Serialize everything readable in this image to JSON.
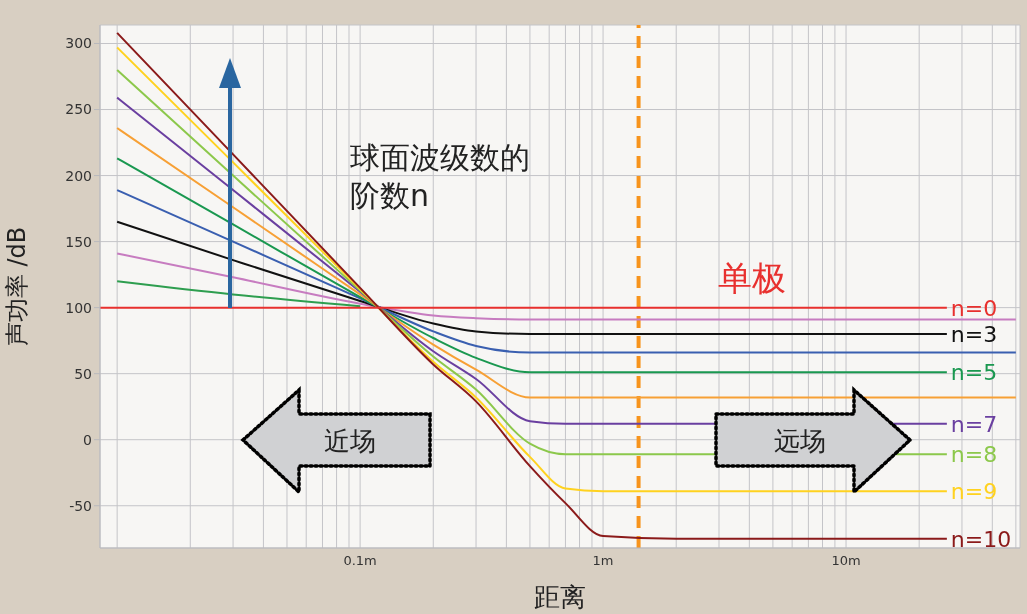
{
  "chart_data": {
    "type": "line",
    "xlabel": "距离",
    "ylabel": "声功率 /dB",
    "log": "x",
    "grid": true,
    "marker": "none",
    "line_style": "solid",
    "xlim": [
      0.0085,
      52
    ],
    "ylim": [
      -82,
      314
    ],
    "xticks": [
      {
        "value": 0.01,
        "label": null
      },
      {
        "value": 0.02,
        "label": null
      },
      {
        "value": 0.03,
        "label": null
      },
      {
        "value": 0.04,
        "label": null
      },
      {
        "value": 0.05,
        "label": null
      },
      {
        "value": 0.06,
        "label": null
      },
      {
        "value": 0.07,
        "label": null
      },
      {
        "value": 0.08,
        "label": null
      },
      {
        "value": 0.09,
        "label": null
      },
      {
        "value": 0.1,
        "label": "0.1m"
      },
      {
        "value": 0.2,
        "label": null
      },
      {
        "value": 0.3,
        "label": null
      },
      {
        "value": 0.4,
        "label": null
      },
      {
        "value": 0.5,
        "label": null
      },
      {
        "value": 0.6,
        "label": null
      },
      {
        "value": 0.7,
        "label": null
      },
      {
        "value": 0.8,
        "label": null
      },
      {
        "value": 0.9,
        "label": null
      },
      {
        "value": 1,
        "label": "1m"
      },
      {
        "value": 2,
        "label": null
      },
      {
        "value": 3,
        "label": null
      },
      {
        "value": 4,
        "label": null
      },
      {
        "value": 5,
        "label": null
      },
      {
        "value": 6,
        "label": null
      },
      {
        "value": 7,
        "label": null
      },
      {
        "value": 8,
        "label": null
      },
      {
        "value": 9,
        "label": null
      },
      {
        "value": 10,
        "label": "10m"
      },
      {
        "value": 20,
        "label": null
      },
      {
        "value": 30,
        "label": null
      },
      {
        "value": 40,
        "label": null
      },
      {
        "value": 50,
        "label": null
      }
    ],
    "yticks": [
      -50,
      0,
      50,
      100,
      150,
      200,
      250,
      300
    ],
    "ref_lines": [
      {
        "axis": "x",
        "value": 1.4,
        "color": "#f7941d",
        "line_style": "dashed"
      }
    ],
    "annotations": [
      "球面波级数的阶数n",
      "单极",
      "近场",
      "远场"
    ],
    "series": [
      {
        "color": "#2e9e4f",
        "x": [
          0.01,
          0.03,
          0.1
        ],
        "values": [
          120,
          110,
          101
        ]
      },
      {
        "color": "#c77cc0",
        "x": [
          0.01,
          0.03,
          0.1,
          0.2,
          0.3,
          0.5,
          0.7,
          1,
          2,
          50
        ],
        "values": [
          141,
          123,
          103,
          94,
          92,
          91,
          91,
          91,
          91,
          91
        ]
      },
      {
        "name": "n=3",
        "color": "#111111",
        "x": [
          0.01,
          0.03,
          0.1,
          0.2,
          0.3,
          0.5,
          0.7,
          1,
          2,
          26
        ],
        "values": [
          165,
          136,
          105,
          88,
          82,
          80,
          80,
          80,
          80,
          80
        ]
      },
      {
        "color": "#3a5fb0",
        "x": [
          0.01,
          0.03,
          0.1,
          0.2,
          0.3,
          0.5,
          0.7,
          1,
          2,
          50
        ],
        "values": [
          189,
          150,
          107,
          82,
          71,
          66,
          66,
          66,
          66,
          66
        ]
      },
      {
        "name": "n=5",
        "color": "#1a9850",
        "x": [
          0.01,
          0.03,
          0.1,
          0.2,
          0.3,
          0.5,
          0.7,
          1,
          2,
          26
        ],
        "values": [
          213,
          163,
          108,
          77,
          62,
          51,
          51,
          51,
          51,
          51
        ]
      },
      {
        "color": "#f7a035",
        "x": [
          0.01,
          0.03,
          0.1,
          0.2,
          0.3,
          0.5,
          0.7,
          1,
          2,
          50
        ],
        "values": [
          236,
          176,
          110,
          72,
          53,
          32,
          32,
          32,
          32,
          32
        ]
      },
      {
        "name": "n=7",
        "color": "#6a3fa0",
        "x": [
          0.01,
          0.03,
          0.1,
          0.2,
          0.3,
          0.5,
          0.7,
          1,
          2,
          26
        ],
        "values": [
          259,
          189,
          112,
          67,
          46,
          14,
          12,
          12,
          12,
          12
        ]
      },
      {
        "name": "n=8",
        "color": "#8cc84b",
        "x": [
          0.01,
          0.03,
          0.1,
          0.2,
          0.3,
          0.5,
          0.7,
          1,
          2,
          26
        ],
        "values": [
          280,
          200,
          113,
          63,
          38,
          -3,
          -11,
          -11,
          -11,
          -11
        ]
      },
      {
        "name": "n=9",
        "color": "#ffd21f",
        "x": [
          0.01,
          0.03,
          0.1,
          0.2,
          0.3,
          0.5,
          0.7,
          1,
          2,
          26
        ],
        "values": [
          297,
          210,
          114,
          59,
          32,
          -13,
          -37,
          -39,
          -39,
          -39
        ]
      },
      {
        "name": "n=10",
        "color": "#8b1a1a",
        "x": [
          0.01,
          0.03,
          0.1,
          0.2,
          0.3,
          0.5,
          0.7,
          1,
          2,
          26
        ],
        "values": [
          308,
          216,
          115,
          57,
          29,
          -20,
          -48,
          -73,
          -75,
          -75
        ]
      },
      {
        "name": "n=0",
        "color": "#e8302e",
        "x": [
          0.0085,
          26
        ],
        "values": [
          100,
          100
        ]
      }
    ]
  }
}
